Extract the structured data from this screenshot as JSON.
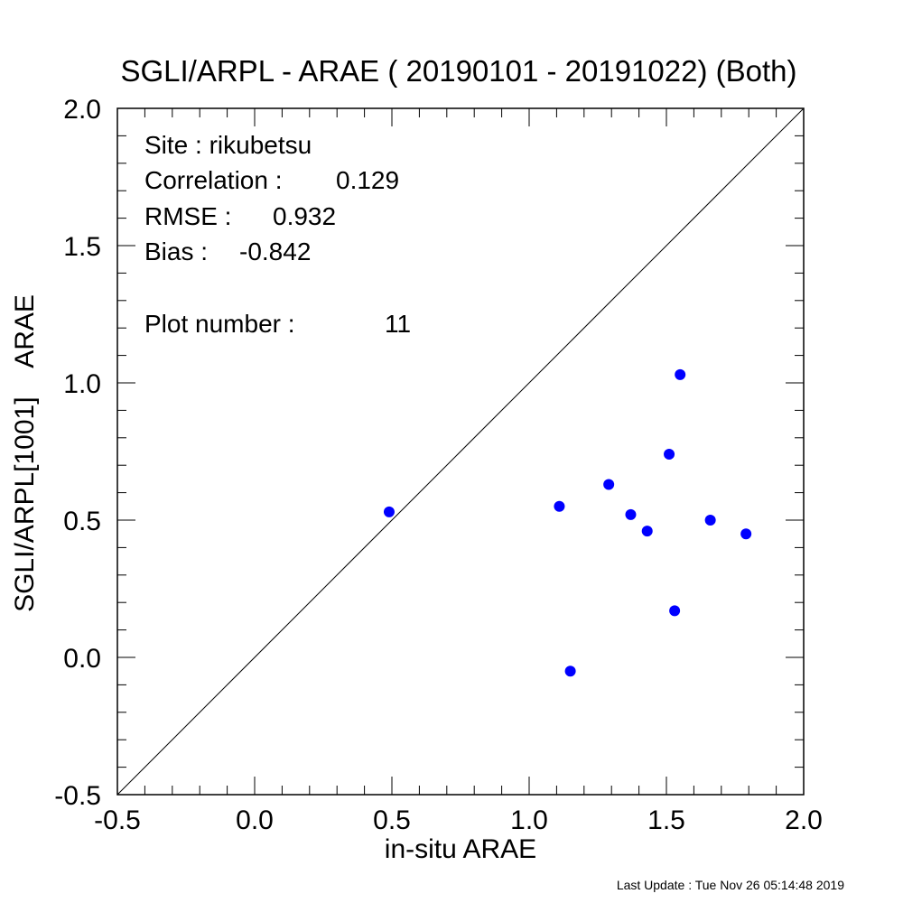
{
  "chart_data": {
    "type": "scatter",
    "title": "SGLI/ARPL - ARAE ( 20190101 - 20191022) (Both)",
    "xlabel": "in-situ ARAE",
    "ylabel": "SGLI/ARPL[1001]    ARAE",
    "xlim": [
      -0.5,
      2.0
    ],
    "ylim": [
      -0.5,
      2.0
    ],
    "x_ticks": [
      "-0.5",
      "0.0",
      "0.5",
      "1.0",
      "1.5",
      "2.0"
    ],
    "y_ticks": [
      "-0.5",
      "0.0",
      "0.5",
      "1.0",
      "1.5",
      "2.0"
    ],
    "reference_line": "1:1",
    "grid": false,
    "point_color": "#0000ff",
    "series": [
      {
        "points": [
          {
            "x": 0.49,
            "y": 0.53
          },
          {
            "x": 1.11,
            "y": 0.55
          },
          {
            "x": 1.15,
            "y": -0.05
          },
          {
            "x": 1.29,
            "y": 0.63
          },
          {
            "x": 1.37,
            "y": 0.52
          },
          {
            "x": 1.43,
            "y": 0.46
          },
          {
            "x": 1.51,
            "y": 0.74
          },
          {
            "x": 1.53,
            "y": 0.17
          },
          {
            "x": 1.55,
            "y": 1.03
          },
          {
            "x": 1.66,
            "y": 0.5
          },
          {
            "x": 1.79,
            "y": 0.45
          }
        ]
      }
    ],
    "annotations": {
      "site": "Site : rikubetsu",
      "correlation_label": "Correlation :",
      "correlation_value": "0.129",
      "rmse_label": "RMSE :",
      "rmse_value": "0.932",
      "bias_label": "Bias :",
      "bias_value": "-0.842",
      "plot_number_label": "Plot number :",
      "plot_number_value": "11"
    }
  },
  "footer": {
    "last_update": "Last Update : Tue Nov 26 05:14:48 2019"
  }
}
